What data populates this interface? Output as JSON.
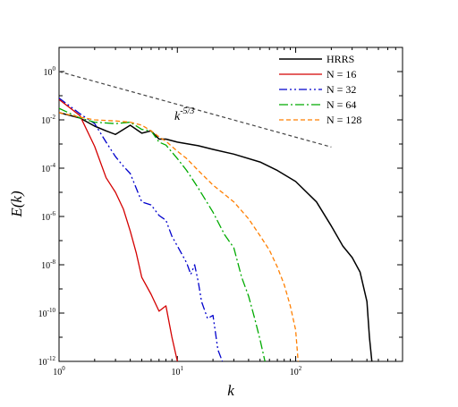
{
  "chart_data": {
    "type": "line",
    "xlabel": "k",
    "ylabel": "E(k)",
    "xscale": "log",
    "yscale": "log",
    "xlim": [
      1,
      800
    ],
    "ylim": [
      1e-12,
      10
    ],
    "grid": false,
    "legend_position": "top-right",
    "x_ticks": [
      {
        "value": 1,
        "base": "10",
        "exp": "0"
      },
      {
        "value": 10,
        "base": "10",
        "exp": "1"
      },
      {
        "value": 100,
        "base": "10",
        "exp": "2"
      }
    ],
    "y_ticks": [
      {
        "value": 1,
        "base": "10",
        "exp": "0"
      },
      {
        "value": 0.01,
        "base": "10",
        "exp": "-2"
      },
      {
        "value": 0.0001,
        "base": "10",
        "exp": "-4"
      },
      {
        "value": 1e-06,
        "base": "10",
        "exp": "-6"
      },
      {
        "value": 1e-08,
        "base": "10",
        "exp": "-8"
      },
      {
        "value": 1e-10,
        "base": "10",
        "exp": "-10"
      },
      {
        "value": 1e-12,
        "base": "10",
        "exp": "-12"
      }
    ],
    "annotation": {
      "base": "k",
      "exp": "-5/3"
    },
    "series": [
      {
        "name": "HRRS",
        "color": "#000000",
        "dash": "solid",
        "width": 1.5,
        "x": [
          1,
          1.5,
          2,
          2.5,
          3,
          4,
          5,
          6,
          7,
          8,
          10,
          15,
          20,
          30,
          50,
          70,
          100,
          150,
          200,
          250,
          300,
          350,
          400,
          420,
          440
        ],
        "y": [
          0.02,
          0.012,
          0.0055,
          0.0035,
          0.0025,
          0.006,
          0.0028,
          0.0035,
          0.0016,
          0.0016,
          0.0012,
          0.00085,
          0.0006,
          0.00038,
          0.00018,
          8e-05,
          2.8e-05,
          4e-06,
          4e-07,
          6e-08,
          2e-08,
          5e-09,
          3e-10,
          1e-11,
          1e-12
        ]
      },
      {
        "name": "N = 16",
        "color": "#d40000",
        "dash": "solid",
        "width": 1.3,
        "x": [
          1,
          1.5,
          2,
          2.5,
          3,
          3.5,
          4,
          4.5,
          5,
          6,
          7,
          8,
          9,
          10
        ],
        "y": [
          0.07,
          0.015,
          0.0008,
          4e-05,
          1e-05,
          2e-06,
          2.5e-07,
          3e-08,
          3e-09,
          6e-10,
          1.2e-10,
          2e-10,
          1e-11,
          1e-12
        ]
      },
      {
        "name": "N = 32",
        "color": "#0000cc",
        "dash": "9,3,2,3,2,3",
        "width": 1.3,
        "x": [
          1,
          1.5,
          2,
          2.5,
          3,
          3.5,
          4,
          5,
          6,
          7,
          8,
          9,
          10,
          12,
          13,
          14,
          15,
          16,
          18,
          20,
          22,
          24
        ],
        "y": [
          0.08,
          0.018,
          0.007,
          0.0012,
          0.0003,
          0.00012,
          6e-05,
          4e-06,
          3e-06,
          1.1e-06,
          7e-07,
          1.5e-07,
          6e-08,
          1.2e-08,
          4e-09,
          1e-08,
          2e-09,
          3e-10,
          6e-11,
          8e-11,
          3e-12,
          1e-12
        ]
      },
      {
        "name": "N = 64",
        "color": "#00aa00",
        "dash": "10,3,2,3",
        "width": 1.3,
        "x": [
          1,
          1.5,
          2,
          3,
          4,
          5,
          6,
          7,
          8,
          10,
          12,
          15,
          20,
          25,
          30,
          35,
          40,
          45,
          50,
          55
        ],
        "y": [
          0.03,
          0.012,
          0.008,
          0.007,
          0.008,
          0.004,
          0.0035,
          0.0012,
          0.0009,
          0.00025,
          8e-05,
          1.5e-05,
          1.5e-06,
          1.8e-07,
          5e-08,
          3e-09,
          5e-10,
          6e-11,
          8e-12,
          1e-12
        ]
      },
      {
        "name": "N = 128",
        "color": "#ff7f00",
        "dash": "5,3",
        "width": 1.3,
        "x": [
          1,
          1.5,
          2,
          3,
          4,
          5,
          6,
          7,
          8,
          10,
          12,
          15,
          20,
          30,
          40,
          50,
          60,
          70,
          80,
          90,
          100,
          105
        ],
        "y": [
          0.02,
          0.013,
          0.01,
          0.009,
          0.008,
          0.006,
          0.0035,
          0.002,
          0.0013,
          0.0005,
          0.00025,
          8e-05,
          2e-05,
          4e-06,
          8e-07,
          1.6e-07,
          4e-08,
          8e-09,
          1.5e-09,
          2e-10,
          2e-11,
          1e-12
        ]
      }
    ],
    "reference_line": {
      "color": "#444444",
      "dash": "4,3",
      "x": [
        1,
        200
      ],
      "y": [
        1.0,
        0.00075
      ]
    }
  }
}
